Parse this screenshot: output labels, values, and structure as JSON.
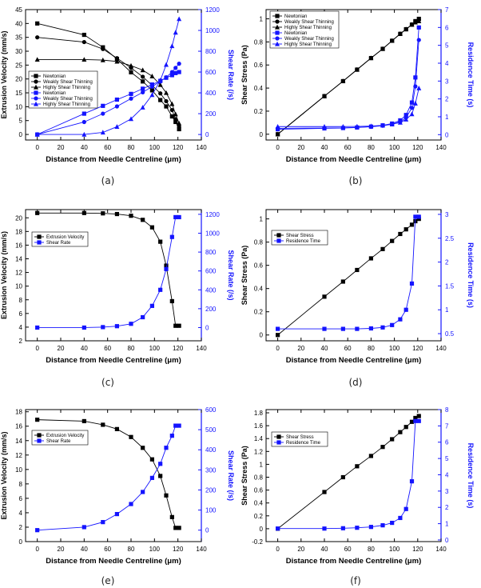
{
  "colors": {
    "black_series": "#000000",
    "blue_series": "#1414ff"
  },
  "chart_data": [
    {
      "caption": "(a)",
      "type": "line",
      "xlabel": "Distance from Needle Centreline (μm)",
      "ylabel_left": "Extrusion Velocity (mm/s)",
      "ylabel_right": "Shear Rate (/s)",
      "xlim": [
        -10,
        140
      ],
      "xticks": [
        0,
        20,
        40,
        60,
        80,
        100,
        120,
        140
      ],
      "ylim_left": [
        -2,
        45
      ],
      "yticks_left": [
        0,
        5,
        10,
        15,
        20,
        25,
        30,
        35,
        40,
        45
      ],
      "ylim_right": [
        -53,
        1200
      ],
      "yticks_right": [
        0,
        200,
        400,
        600,
        800,
        1000,
        1200
      ],
      "legend_position": "center-left",
      "legend": [
        "Newtonian",
        "Weakly Shear Thinning",
        "Highly Shear Thinning",
        "Newtonian",
        "Weakly Shear Thinning",
        "Highly Shear Thinning"
      ],
      "series": [
        {
          "name": "Newtonian",
          "axis": "left",
          "color": "#000000",
          "marker": "square",
          "x": [
            0,
            40,
            56,
            68,
            80,
            90,
            98,
            105,
            110,
            115,
            118,
            121
          ],
          "y": [
            40,
            35.9,
            31.4,
            27.2,
            22.4,
            19.1,
            15.9,
            12.4,
            10.1,
            6.5,
            4.5,
            1.9
          ]
        },
        {
          "name": "Weakly Shear Thinning",
          "axis": "left",
          "color": "#000000",
          "marker": "circle",
          "x": [
            0,
            40,
            56,
            68,
            80,
            90,
            98,
            105,
            110,
            115,
            118,
            121
          ],
          "y": [
            35,
            33.3,
            30.8,
            27.5,
            24,
            20.8,
            17.7,
            14.8,
            12,
            8.8,
            5.5,
            2.8
          ]
        },
        {
          "name": "Highly Shear Thinning",
          "axis": "left",
          "color": "#000000",
          "marker": "triangle",
          "x": [
            0,
            40,
            56,
            68,
            80,
            90,
            98,
            105,
            110,
            115,
            118,
            121
          ],
          "y": [
            27,
            27,
            26.8,
            26.3,
            24.8,
            23.2,
            21,
            17.9,
            15,
            11,
            7.3,
            4
          ]
        },
        {
          "name": "Newtonian",
          "axis": "right",
          "color": "#1414ff",
          "marker": "square",
          "x": [
            0,
            40,
            56,
            68,
            80,
            90,
            98,
            105,
            110,
            115,
            118,
            121
          ],
          "y": [
            0,
            200,
            275,
            335,
            390,
            440,
            480,
            515,
            545,
            570,
            590,
            600
          ]
        },
        {
          "name": "Weakly Shear Thinning",
          "axis": "right",
          "color": "#1414ff",
          "marker": "circle",
          "x": [
            0,
            40,
            56,
            68,
            80,
            90,
            98,
            105,
            110,
            115,
            118,
            121
          ],
          "y": [
            0,
            120,
            200,
            270,
            345,
            405,
            460,
            510,
            550,
            600,
            640,
            680
          ]
        },
        {
          "name": "Highly Shear Thinning",
          "axis": "right",
          "color": "#1414ff",
          "marker": "triangle",
          "x": [
            0,
            40,
            56,
            68,
            80,
            90,
            98,
            105,
            110,
            115,
            118,
            121
          ],
          "y": [
            0,
            0,
            20,
            75,
            150,
            260,
            380,
            520,
            670,
            850,
            980,
            1110
          ]
        }
      ]
    },
    {
      "caption": "(b)",
      "type": "line",
      "xlabel": "Distance from Needle Centreline (μm)",
      "ylabel_left": "Shear Stress (Pa)",
      "ylabel_right": "Residence Time (s)",
      "xlim": [
        -10,
        140
      ],
      "xticks": [
        0,
        20,
        40,
        60,
        80,
        100,
        120,
        140
      ],
      "ylim_left": [
        -0.05,
        1.08
      ],
      "yticks_left": [
        0.0,
        0.2,
        0.4,
        0.6,
        0.8,
        1.0
      ],
      "ylim_right": [
        -0.3,
        7
      ],
      "yticks_right": [
        0,
        1,
        2,
        3,
        4,
        5,
        6,
        7
      ],
      "legend_position": "top-left",
      "legend": [
        "Newtonian",
        "Weakly Shear Thinning",
        "Highly Shear Thinning",
        "Newtonian",
        "Weakly Shear Thinning",
        "Highly Shear Thinning"
      ],
      "series": [
        {
          "name": "Newtonian",
          "axis": "left",
          "color": "#000000",
          "marker": "square",
          "x": [
            0,
            40,
            56,
            68,
            80,
            90,
            98,
            105,
            110,
            115,
            118,
            121
          ],
          "y": [
            0,
            0.33,
            0.46,
            0.56,
            0.66,
            0.74,
            0.81,
            0.87,
            0.91,
            0.95,
            0.98,
            1.0
          ]
        },
        {
          "name": "Weakly Shear Thinning",
          "axis": "left",
          "color": "#000000",
          "marker": "circle",
          "x": [
            0,
            40,
            56,
            68,
            80,
            90,
            98,
            105,
            110,
            115,
            118,
            121
          ],
          "y": [
            0,
            0.33,
            0.46,
            0.56,
            0.66,
            0.74,
            0.81,
            0.87,
            0.91,
            0.95,
            0.98,
            0.99
          ]
        },
        {
          "name": "Highly Shear Thinning",
          "axis": "left",
          "color": "#000000",
          "marker": "triangle",
          "x": [
            0,
            40,
            56,
            68,
            80,
            90,
            98,
            105,
            110,
            115,
            118,
            121
          ],
          "y": [
            0,
            0.33,
            0.46,
            0.56,
            0.66,
            0.74,
            0.81,
            0.87,
            0.91,
            0.95,
            0.97,
            0.98
          ]
        },
        {
          "name": "Newtonian",
          "axis": "right",
          "color": "#1414ff",
          "marker": "square",
          "x": [
            0,
            40,
            56,
            68,
            80,
            90,
            98,
            105,
            110,
            115,
            118,
            121
          ],
          "y": [
            0.3,
            0.35,
            0.37,
            0.4,
            0.45,
            0.52,
            0.62,
            0.8,
            1.1,
            1.8,
            3.2,
            6.0
          ]
        },
        {
          "name": "Weakly Shear Thinning",
          "axis": "right",
          "color": "#1414ff",
          "marker": "circle",
          "x": [
            0,
            40,
            56,
            68,
            80,
            90,
            98,
            105,
            110,
            115,
            118,
            121
          ],
          "y": [
            0.35,
            0.37,
            0.38,
            0.41,
            0.44,
            0.5,
            0.58,
            0.72,
            0.95,
            1.5,
            2.7,
            5.3
          ]
        },
        {
          "name": "Highly Shear Thinning",
          "axis": "right",
          "color": "#1414ff",
          "marker": "triangle",
          "x": [
            0,
            40,
            56,
            68,
            80,
            90,
            98,
            105,
            110,
            115,
            118,
            121
          ],
          "y": [
            0.45,
            0.45,
            0.45,
            0.46,
            0.48,
            0.52,
            0.58,
            0.68,
            0.85,
            1.15,
            1.75,
            2.6
          ]
        }
      ]
    },
    {
      "caption": "(c)",
      "type": "line",
      "xlabel": "Distance from Needle Centreline (μm)",
      "ylabel_left": "Extrusion Velocity (mm/s)",
      "ylabel_right": "Shear Rate (/s)",
      "xlim": [
        -10,
        140
      ],
      "xticks": [
        0,
        20,
        40,
        60,
        80,
        100,
        120,
        140
      ],
      "ylim_left": [
        2,
        21.2
      ],
      "yticks_left": [
        2,
        4,
        6,
        8,
        10,
        12,
        14,
        16,
        18,
        20
      ],
      "ylim_right": [
        -140,
        1250
      ],
      "yticks_right": [
        0,
        200,
        400,
        600,
        800,
        1000,
        1200
      ],
      "legend_position": "top-left",
      "legend": [
        "Extrusion Velocity",
        "Shear Rate"
      ],
      "series": [
        {
          "name": "Extrusion Velocity",
          "axis": "left",
          "color": "#000000",
          "marker": "square",
          "x": [
            0,
            40,
            56,
            68,
            80,
            90,
            98,
            105,
            110,
            115,
            118,
            121
          ],
          "y": [
            20.7,
            20.7,
            20.65,
            20.55,
            20.3,
            19.7,
            18.6,
            16.5,
            13.0,
            7.8,
            4.2,
            4.2
          ]
        },
        {
          "name": "Shear Rate",
          "axis": "right",
          "color": "#1414ff",
          "marker": "square",
          "x": [
            0,
            40,
            56,
            68,
            80,
            90,
            98,
            105,
            110,
            115,
            118,
            121
          ],
          "y": [
            0,
            0,
            5,
            15,
            40,
            110,
            230,
            400,
            620,
            960,
            1170,
            1170
          ]
        }
      ]
    },
    {
      "caption": "(d)",
      "type": "line",
      "xlabel": "Distance from Needle Centreline (μm)",
      "ylabel_left": "Shear Stress (Pa)",
      "ylabel_right": "Residence Time (s)",
      "xlim": [
        -10,
        140
      ],
      "xticks": [
        0,
        20,
        40,
        60,
        80,
        100,
        120,
        140
      ],
      "ylim_left": [
        -0.05,
        1.08
      ],
      "yticks_left": [
        0.0,
        0.2,
        0.4,
        0.6,
        0.8,
        1.0
      ],
      "ylim_right": [
        0.35,
        3.1
      ],
      "yticks_right": [
        0.5,
        1.0,
        1.5,
        2.0,
        2.5,
        3.0
      ],
      "legend_position": "top-left",
      "legend": [
        "Shear Stress",
        "Residence Time"
      ],
      "series": [
        {
          "name": "Shear Stress",
          "axis": "left",
          "color": "#000000",
          "marker": "square",
          "x": [
            0,
            40,
            56,
            68,
            80,
            90,
            98,
            105,
            110,
            115,
            118,
            121
          ],
          "y": [
            0,
            0.33,
            0.46,
            0.56,
            0.66,
            0.74,
            0.81,
            0.87,
            0.91,
            0.95,
            0.98,
            1.0
          ]
        },
        {
          "name": "Residence Time",
          "axis": "right",
          "color": "#1414ff",
          "marker": "square",
          "x": [
            0,
            40,
            56,
            68,
            80,
            90,
            98,
            105,
            110,
            115,
            118,
            121
          ],
          "y": [
            0.6,
            0.6,
            0.6,
            0.6,
            0.61,
            0.63,
            0.68,
            0.8,
            1.0,
            1.55,
            2.95,
            2.95
          ]
        }
      ]
    },
    {
      "caption": "(e)",
      "type": "line",
      "xlabel": "Distance from Needle Centreline (μm)",
      "ylabel_left": "Extrusion Velocity (mm/s)",
      "ylabel_right": "Shear Rate (/s)",
      "xlim": [
        -10,
        140
      ],
      "xticks": [
        0,
        20,
        40,
        60,
        80,
        100,
        120,
        140
      ],
      "ylim_left": [
        0,
        18.3
      ],
      "yticks_left": [
        0,
        2,
        4,
        6,
        8,
        10,
        12,
        14,
        16,
        18
      ],
      "ylim_right": [
        -57,
        600
      ],
      "yticks_right": [
        0,
        100,
        200,
        300,
        400,
        500,
        600
      ],
      "legend_position": "top-left",
      "legend": [
        "Extrusion Velocity",
        "Shear Rate"
      ],
      "series": [
        {
          "name": "Extrusion Velocity",
          "axis": "left",
          "color": "#000000",
          "marker": "square",
          "x": [
            0,
            40,
            56,
            68,
            80,
            90,
            98,
            105,
            110,
            115,
            118,
            121
          ],
          "y": [
            16.9,
            16.7,
            16.2,
            15.6,
            14.5,
            13.0,
            11.4,
            9.1,
            6.4,
            3.4,
            1.9,
            1.9
          ]
        },
        {
          "name": "Shear Rate",
          "axis": "right",
          "color": "#1414ff",
          "marker": "square",
          "x": [
            0,
            40,
            56,
            68,
            80,
            90,
            98,
            105,
            110,
            115,
            118,
            121
          ],
          "y": [
            0,
            15,
            40,
            80,
            130,
            190,
            260,
            330,
            410,
            470,
            520,
            520
          ]
        }
      ]
    },
    {
      "caption": "(f)",
      "type": "line",
      "xlabel": "Distance from Needle Centreline (μm)",
      "ylabel_left": "Shear Stress (Pa)",
      "ylabel_right": "Residence Time (s)",
      "xlim": [
        -10,
        140
      ],
      "xticks": [
        0,
        20,
        40,
        60,
        80,
        100,
        120,
        140
      ],
      "ylim_left": [
        -0.2,
        1.85
      ],
      "yticks_left": [
        -0.2,
        0.0,
        0.2,
        0.4,
        0.6,
        0.8,
        1.0,
        1.2,
        1.4,
        1.6,
        1.8
      ],
      "ylim_right": [
        -0.1,
        8
      ],
      "yticks_right": [
        0,
        1,
        2,
        3,
        4,
        5,
        6,
        7,
        8
      ],
      "legend_position": "top-left",
      "legend": [
        "Shear Stress",
        "Residence Time"
      ],
      "series": [
        {
          "name": "Shear Stress",
          "axis": "left",
          "color": "#000000",
          "marker": "square",
          "x": [
            0,
            40,
            56,
            68,
            80,
            90,
            98,
            105,
            110,
            115,
            118,
            121
          ],
          "y": [
            0,
            0.57,
            0.8,
            0.97,
            1.13,
            1.27,
            1.39,
            1.5,
            1.58,
            1.66,
            1.72,
            1.75
          ]
        },
        {
          "name": "Residence Time",
          "axis": "right",
          "color": "#1414ff",
          "marker": "square",
          "x": [
            0,
            40,
            56,
            68,
            80,
            90,
            98,
            105,
            110,
            115,
            118,
            121
          ],
          "y": [
            0.7,
            0.7,
            0.72,
            0.75,
            0.8,
            0.9,
            1.05,
            1.35,
            1.9,
            3.6,
            7.3,
            7.3
          ]
        }
      ]
    }
  ]
}
